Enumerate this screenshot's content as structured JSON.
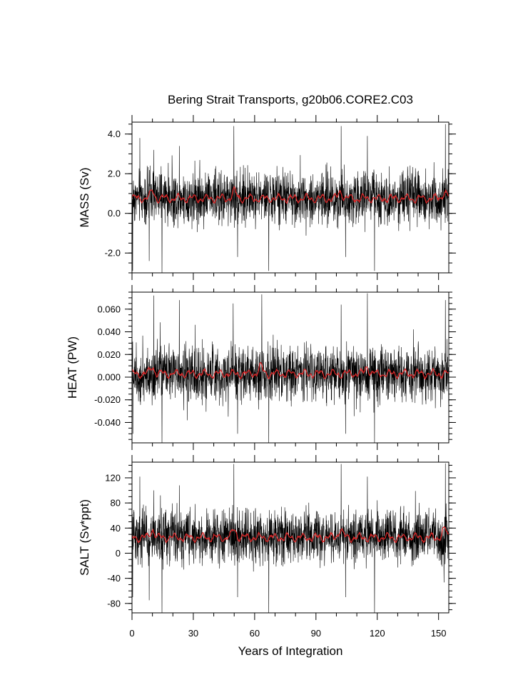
{
  "chart_data": {
    "type": "line",
    "title": "Bering Strait Transports, g20b06.CORE2.C03",
    "xlabel": "Years of Integration",
    "xlim": [
      0,
      155
    ],
    "x_ticks": [
      0,
      30,
      60,
      90,
      120,
      150
    ],
    "x_tick_labels": [
      "0",
      "30",
      "60",
      "90",
      "120",
      "150"
    ],
    "colors": {
      "raw": "#000000",
      "smoothed": "#d62728",
      "frame": "#000000"
    },
    "panels": [
      {
        "id": "mass",
        "ylabel": "MASS (Sv)",
        "ylim": [
          -3.0,
          4.6
        ],
        "y_ticks": [
          4.0,
          2.0,
          0.0,
          -2.0
        ],
        "y_tick_labels": [
          "4.0",
          "2.0",
          "0.0",
          "-2.0"
        ],
        "raw_baseline": 0.8,
        "raw_noise": 0.65,
        "smoothed_baseline": 0.75,
        "spikes": [
          {
            "x": 0.3,
            "y": -2.9
          },
          {
            "x": 3.8,
            "y": 3.8
          },
          {
            "x": 8.4,
            "y": -2.4
          },
          {
            "x": 10.7,
            "y": 3.2
          },
          {
            "x": 14.7,
            "y": -3.0
          },
          {
            "x": 23.2,
            "y": 3.4
          },
          {
            "x": 49.8,
            "y": 4.4
          },
          {
            "x": 51.7,
            "y": -2.2
          },
          {
            "x": 66.9,
            "y": -2.9
          },
          {
            "x": 102.3,
            "y": 4.4
          },
          {
            "x": 104.5,
            "y": -2.2
          },
          {
            "x": 115.2,
            "y": 3.9
          },
          {
            "x": 118.7,
            "y": -2.9
          },
          {
            "x": 153.3,
            "y": 4.5
          }
        ],
        "smoothed_bumps": [
          {
            "x": 10,
            "y": 1.1
          },
          {
            "x": 50,
            "y": 1.1
          },
          {
            "x": 102,
            "y": 1.1
          },
          {
            "x": 153,
            "y": 1.1
          }
        ]
      },
      {
        "id": "heat",
        "ylabel": "HEAT (PW)",
        "ylim": [
          -0.058,
          0.075
        ],
        "y_ticks": [
          0.06,
          0.04,
          0.02,
          0.0,
          -0.02,
          -0.04
        ],
        "y_tick_labels": [
          "0.060",
          "0.040",
          "0.020",
          "0.000",
          "-0.020",
          "-0.040"
        ],
        "raw_baseline": 0.003,
        "raw_noise": 0.012,
        "smoothed_baseline": 0.003,
        "spikes": [
          {
            "x": 0.4,
            "y": -0.05
          },
          {
            "x": 10.7,
            "y": 0.072
          },
          {
            "x": 14.7,
            "y": -0.058
          },
          {
            "x": 23.2,
            "y": 0.068
          },
          {
            "x": 49.5,
            "y": 0.065
          },
          {
            "x": 51.7,
            "y": -0.05
          },
          {
            "x": 63.5,
            "y": 0.073
          },
          {
            "x": 66.9,
            "y": -0.058
          },
          {
            "x": 102.3,
            "y": 0.064
          },
          {
            "x": 104.5,
            "y": -0.05
          },
          {
            "x": 115.2,
            "y": 0.074
          },
          {
            "x": 118.7,
            "y": -0.058
          },
          {
            "x": 153.3,
            "y": 0.068
          }
        ],
        "smoothed_bumps": [
          {
            "x": 10,
            "y": 0.009
          },
          {
            "x": 63,
            "y": 0.009
          },
          {
            "x": 115,
            "y": 0.009
          }
        ]
      },
      {
        "id": "salt",
        "ylabel": "SALT (Sv*ppt)",
        "ylim": [
          -95,
          145
        ],
        "y_ticks": [
          120,
          80,
          40,
          0,
          -40,
          -80
        ],
        "y_tick_labels": [
          "120",
          "80",
          "40",
          "0",
          "-40",
          "-80"
        ],
        "raw_baseline": 27,
        "raw_noise": 21,
        "smoothed_baseline": 25,
        "spikes": [
          {
            "x": 0.3,
            "y": -70
          },
          {
            "x": 3.8,
            "y": 122
          },
          {
            "x": 8.4,
            "y": -75
          },
          {
            "x": 10.7,
            "y": 100
          },
          {
            "x": 14.7,
            "y": -95
          },
          {
            "x": 23.2,
            "y": 108
          },
          {
            "x": 49.8,
            "y": 142
          },
          {
            "x": 51.7,
            "y": -70
          },
          {
            "x": 66.9,
            "y": -95
          },
          {
            "x": 102.3,
            "y": 142
          },
          {
            "x": 104.5,
            "y": -70
          },
          {
            "x": 115.2,
            "y": 122
          },
          {
            "x": 118.7,
            "y": -95
          },
          {
            "x": 153.3,
            "y": 143
          }
        ],
        "smoothed_bumps": [
          {
            "x": 10,
            "y": 38
          },
          {
            "x": 50,
            "y": 38
          },
          {
            "x": 102,
            "y": 38
          },
          {
            "x": 153,
            "y": 38
          }
        ]
      }
    ]
  }
}
